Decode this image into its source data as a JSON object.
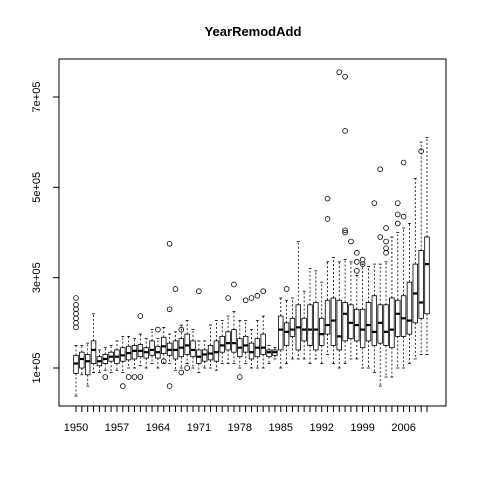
{
  "chart_data": {
    "type": "boxplot",
    "title": "YearRemodAdd",
    "xlabel": "",
    "ylabel": "",
    "categories": [
      1950,
      1951,
      1952,
      1953,
      1954,
      1955,
      1956,
      1957,
      1958,
      1959,
      1960,
      1961,
      1962,
      1963,
      1964,
      1965,
      1966,
      1967,
      1968,
      1969,
      1970,
      1971,
      1972,
      1973,
      1974,
      1975,
      1976,
      1977,
      1978,
      1979,
      1980,
      1981,
      1982,
      1983,
      1984,
      1985,
      1986,
      1987,
      1988,
      1989,
      1990,
      1991,
      1992,
      1993,
      1994,
      1995,
      1996,
      1997,
      1998,
      1999,
      2000,
      2001,
      2002,
      2003,
      2004,
      2005,
      2006,
      2007,
      2008,
      2009,
      2010
    ],
    "x_tick_labels": [
      "1950",
      "1957",
      "1964",
      "1971",
      "1978",
      "1985",
      "1992",
      "1999",
      "2006"
    ],
    "y_ticks": [
      100000,
      300000,
      500000,
      700000
    ],
    "y_tick_labels": [
      "1e+05",
      "3e+05",
      "5e+05",
      "7e+05"
    ],
    "ylim": [
      0,
      780000
    ],
    "series": [
      {
        "boxes": [
          {
            "x": 1950,
            "min": 37900,
            "q1": 88000,
            "median": 110000,
            "q3": 128000,
            "max": 150000,
            "outliers": [
              190000,
              200000,
              210000,
              220000,
              230000,
              240000,
              255000
            ]
          },
          {
            "x": 1951,
            "min": 85000,
            "q1": 100000,
            "median": 120000,
            "q3": 135000,
            "max": 150000,
            "outliers": []
          },
          {
            "x": 1952,
            "min": 60000,
            "q1": 85000,
            "median": 115000,
            "q3": 130000,
            "max": 155000,
            "outliers": []
          },
          {
            "x": 1953,
            "min": 90000,
            "q1": 110000,
            "median": 140000,
            "q3": 160000,
            "max": 220000,
            "outliers": []
          },
          {
            "x": 1954,
            "min": 90000,
            "q1": 105000,
            "median": 115000,
            "q3": 125000,
            "max": 140000,
            "outliers": []
          },
          {
            "x": 1955,
            "min": 95000,
            "q1": 110000,
            "median": 120000,
            "q3": 130000,
            "max": 145000,
            "outliers": [
              80000
            ]
          },
          {
            "x": 1956,
            "min": 90000,
            "q1": 115000,
            "median": 125000,
            "q3": 135000,
            "max": 150000,
            "outliers": []
          },
          {
            "x": 1957,
            "min": 95000,
            "q1": 110000,
            "median": 125000,
            "q3": 140000,
            "max": 160000,
            "outliers": []
          },
          {
            "x": 1958,
            "min": 90000,
            "q1": 115000,
            "median": 128000,
            "q3": 145000,
            "max": 170000,
            "outliers": [
              60000
            ]
          },
          {
            "x": 1959,
            "min": 100000,
            "q1": 118000,
            "median": 133000,
            "q3": 148000,
            "max": 170000,
            "outliers": [
              80000
            ]
          },
          {
            "x": 1960,
            "min": 100000,
            "q1": 120000,
            "median": 138000,
            "q3": 150000,
            "max": 165000,
            "outliers": [
              80000
            ]
          },
          {
            "x": 1961,
            "min": 105000,
            "q1": 125000,
            "median": 138000,
            "q3": 152000,
            "max": 175000,
            "outliers": [
              80000,
              215000
            ]
          },
          {
            "x": 1962,
            "min": 100000,
            "q1": 122000,
            "median": 135000,
            "q3": 145000,
            "max": 165000,
            "outliers": []
          },
          {
            "x": 1963,
            "min": 110000,
            "q1": 128000,
            "median": 140000,
            "q3": 160000,
            "max": 185000,
            "outliers": []
          },
          {
            "x": 1964,
            "min": 100000,
            "q1": 122000,
            "median": 135000,
            "q3": 148000,
            "max": 165000,
            "outliers": [
              185000
            ]
          },
          {
            "x": 1965,
            "min": 110000,
            "q1": 132000,
            "median": 148000,
            "q3": 168000,
            "max": 190000,
            "outliers": [
              115000
            ]
          },
          {
            "x": 1966,
            "min": 110000,
            "q1": 128000,
            "median": 140000,
            "q3": 155000,
            "max": 175000,
            "outliers": [
              60000,
              230000,
              375000
            ]
          },
          {
            "x": 1967,
            "min": 95000,
            "q1": 120000,
            "median": 140000,
            "q3": 160000,
            "max": 180000,
            "outliers": [
              275000
            ]
          },
          {
            "x": 1968,
            "min": 100000,
            "q1": 125000,
            "median": 145000,
            "q3": 165000,
            "max": 195000,
            "outliers": [
              90000,
              185000
            ]
          },
          {
            "x": 1969,
            "min": 110000,
            "q1": 130000,
            "median": 150000,
            "q3": 175000,
            "max": 205000,
            "outliers": [
              100000
            ]
          },
          {
            "x": 1970,
            "min": 100000,
            "q1": 125000,
            "median": 140000,
            "q3": 160000,
            "max": 185000,
            "outliers": []
          },
          {
            "x": 1971,
            "min": 90000,
            "q1": 110000,
            "median": 125000,
            "q3": 140000,
            "max": 160000,
            "outliers": [
              270000
            ]
          },
          {
            "x": 1972,
            "min": 100000,
            "q1": 115000,
            "median": 130000,
            "q3": 140000,
            "max": 160000,
            "outliers": []
          },
          {
            "x": 1973,
            "min": 100000,
            "q1": 118000,
            "median": 132000,
            "q3": 150000,
            "max": 195000,
            "outliers": []
          },
          {
            "x": 1974,
            "min": 95000,
            "q1": 115000,
            "median": 135000,
            "q3": 160000,
            "max": 205000,
            "outliers": []
          },
          {
            "x": 1975,
            "min": 110000,
            "q1": 135000,
            "median": 150000,
            "q3": 170000,
            "max": 205000,
            "outliers": []
          },
          {
            "x": 1976,
            "min": 110000,
            "q1": 140000,
            "median": 155000,
            "q3": 180000,
            "max": 215000,
            "outliers": [
              255000
            ]
          },
          {
            "x": 1977,
            "min": 110000,
            "q1": 135000,
            "median": 155000,
            "q3": 185000,
            "max": 225000,
            "outliers": [
              285000
            ]
          },
          {
            "x": 1978,
            "min": 100000,
            "q1": 125000,
            "median": 145000,
            "q3": 165000,
            "max": 205000,
            "outliers": [
              80000
            ]
          },
          {
            "x": 1979,
            "min": 110000,
            "q1": 135000,
            "median": 150000,
            "q3": 170000,
            "max": 205000,
            "outliers": [
              250000
            ]
          },
          {
            "x": 1980,
            "min": 100000,
            "q1": 120000,
            "median": 135000,
            "q3": 155000,
            "max": 185000,
            "outliers": [
              255000
            ]
          },
          {
            "x": 1981,
            "min": 100000,
            "q1": 125000,
            "median": 145000,
            "q3": 165000,
            "max": 205000,
            "outliers": [
              260000
            ]
          },
          {
            "x": 1982,
            "min": 100000,
            "q1": 130000,
            "median": 145000,
            "q3": 175000,
            "max": 215000,
            "outliers": [
              270000
            ]
          },
          {
            "x": 1983,
            "min": 110000,
            "q1": 125000,
            "median": 135000,
            "q3": 140000,
            "max": 150000,
            "outliers": []
          },
          {
            "x": 1984,
            "min": 120000,
            "q1": 128000,
            "median": 135000,
            "q3": 140000,
            "max": 145000,
            "outliers": []
          },
          {
            "x": 1985,
            "min": 100000,
            "q1": 140000,
            "median": 185000,
            "q3": 215000,
            "max": 255000,
            "outliers": []
          },
          {
            "x": 1986,
            "min": 110000,
            "q1": 150000,
            "median": 180000,
            "q3": 200000,
            "max": 250000,
            "outliers": [
              275000
            ]
          },
          {
            "x": 1987,
            "min": 120000,
            "q1": 170000,
            "median": 185000,
            "q3": 210000,
            "max": 255000,
            "outliers": []
          },
          {
            "x": 1988,
            "min": 120000,
            "q1": 140000,
            "median": 190000,
            "q3": 240000,
            "max": 380000,
            "outliers": []
          },
          {
            "x": 1989,
            "min": 120000,
            "q1": 160000,
            "median": 185000,
            "q3": 210000,
            "max": 270000,
            "outliers": []
          },
          {
            "x": 1990,
            "min": 110000,
            "q1": 150000,
            "median": 185000,
            "q3": 240000,
            "max": 320000,
            "outliers": []
          },
          {
            "x": 1991,
            "min": 120000,
            "q1": 140000,
            "median": 185000,
            "q3": 245000,
            "max": 315000,
            "outliers": []
          },
          {
            "x": 1992,
            "min": 110000,
            "q1": 150000,
            "median": 175000,
            "q3": 210000,
            "max": 290000,
            "outliers": []
          },
          {
            "x": 1993,
            "min": 130000,
            "q1": 175000,
            "median": 195000,
            "q3": 250000,
            "max": 335000,
            "outliers": [
              430000,
              475000
            ]
          },
          {
            "x": 1994,
            "min": 110000,
            "q1": 150000,
            "median": 205000,
            "q3": 255000,
            "max": 345000,
            "outliers": []
          },
          {
            "x": 1995,
            "min": 100000,
            "q1": 140000,
            "median": 170000,
            "q3": 250000,
            "max": 335000,
            "outliers": [
              755000
            ]
          },
          {
            "x": 1996,
            "min": 110000,
            "q1": 160000,
            "median": 220000,
            "q3": 245000,
            "max": 340000,
            "outliers": [
              400000,
              405000,
              625000,
              745000
            ]
          },
          {
            "x": 1997,
            "min": 120000,
            "q1": 165000,
            "median": 200000,
            "q3": 240000,
            "max": 335000,
            "outliers": [
              380000
            ]
          },
          {
            "x": 1998,
            "min": 120000,
            "q1": 160000,
            "median": 195000,
            "q3": 230000,
            "max": 305000,
            "outliers": [
              315000,
              335000,
              355000
            ]
          },
          {
            "x": 1999,
            "min": 100000,
            "q1": 145000,
            "median": 185000,
            "q3": 230000,
            "max": 330000,
            "outliers": [
              330000,
              340000
            ]
          },
          {
            "x": 2000,
            "min": 100000,
            "q1": 160000,
            "median": 195000,
            "q3": 245000,
            "max": 325000,
            "outliers": []
          },
          {
            "x": 2001,
            "min": 90000,
            "q1": 150000,
            "median": 180000,
            "q3": 260000,
            "max": 330000,
            "outliers": [
              465000
            ]
          },
          {
            "x": 2002,
            "min": 60000,
            "q1": 155000,
            "median": 200000,
            "q3": 240000,
            "max": 330000,
            "outliers": [
              390000,
              540000
            ]
          },
          {
            "x": 2003,
            "min": 80000,
            "q1": 150000,
            "median": 180000,
            "q3": 240000,
            "max": 335000,
            "outliers": [
              355000,
              365000,
              380000,
              410000
            ]
          },
          {
            "x": 2004,
            "min": 80000,
            "q1": 145000,
            "median": 185000,
            "q3": 255000,
            "max": 390000,
            "outliers": []
          },
          {
            "x": 2005,
            "min": 100000,
            "q1": 170000,
            "median": 220000,
            "q3": 250000,
            "max": 400000,
            "outliers": [
              420000,
              440000,
              465000
            ]
          },
          {
            "x": 2006,
            "min": 100000,
            "q1": 170000,
            "median": 210000,
            "q3": 260000,
            "max": 410000,
            "outliers": [
              435000,
              555000
            ]
          },
          {
            "x": 2007,
            "min": 110000,
            "q1": 175000,
            "median": 205000,
            "q3": 290000,
            "max": 420000,
            "outliers": []
          },
          {
            "x": 2008,
            "min": 120000,
            "q1": 200000,
            "median": 265000,
            "q3": 330000,
            "max": 520000,
            "outliers": []
          },
          {
            "x": 2009,
            "min": 130000,
            "q1": 210000,
            "median": 245000,
            "q3": 360000,
            "max": 600000,
            "outliers": [
              580000
            ]
          },
          {
            "x": 2010,
            "min": 130000,
            "q1": 220000,
            "median": 330000,
            "q3": 390000,
            "max": 610000,
            "outliers": []
          }
        ]
      }
    ]
  }
}
